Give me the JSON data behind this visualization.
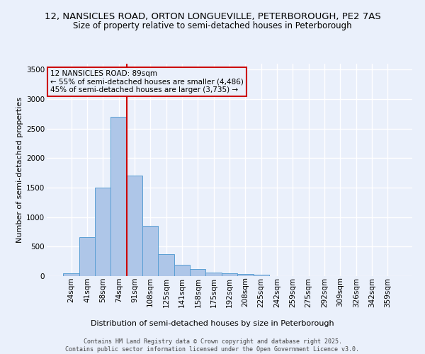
{
  "title_line1": "12, NANSICLES ROAD, ORTON LONGUEVILLE, PETERBOROUGH, PE2 7AS",
  "title_line2": "Size of property relative to semi-detached houses in Peterborough",
  "xlabel": "Distribution of semi-detached houses by size in Peterborough",
  "ylabel": "Number of semi-detached properties",
  "footnote": "Contains HM Land Registry data © Crown copyright and database right 2025.\nContains public sector information licensed under the Open Government Licence v3.0.",
  "categories": [
    "24sqm",
    "41sqm",
    "58sqm",
    "74sqm",
    "91sqm",
    "108sqm",
    "125sqm",
    "141sqm",
    "158sqm",
    "175sqm",
    "192sqm",
    "208sqm",
    "225sqm",
    "242sqm",
    "259sqm",
    "275sqm",
    "292sqm",
    "309sqm",
    "326sqm",
    "342sqm",
    "359sqm"
  ],
  "values": [
    50,
    660,
    1500,
    2700,
    1700,
    850,
    370,
    190,
    120,
    65,
    45,
    35,
    20,
    0,
    0,
    0,
    0,
    0,
    0,
    0,
    0
  ],
  "bar_color": "#aec6e8",
  "bar_edge_color": "#5a9fd4",
  "vline_color": "#cc0000",
  "annotation_title": "12 NANSICLES ROAD: 89sqm",
  "annotation_line2": "← 55% of semi-detached houses are smaller (4,486)",
  "annotation_line3": "45% of semi-detached houses are larger (3,735) →",
  "annotation_box_color": "#cc0000",
  "ylim": [
    0,
    3600
  ],
  "yticks": [
    0,
    500,
    1000,
    1500,
    2000,
    2500,
    3000,
    3500
  ],
  "background_color": "#eaf0fb",
  "grid_color": "#ffffff",
  "title_fontsize": 9.5,
  "subtitle_fontsize": 8.5,
  "axis_label_fontsize": 8,
  "tick_fontsize": 7.5,
  "footnote_fontsize": 6,
  "annotation_fontsize": 7.5
}
